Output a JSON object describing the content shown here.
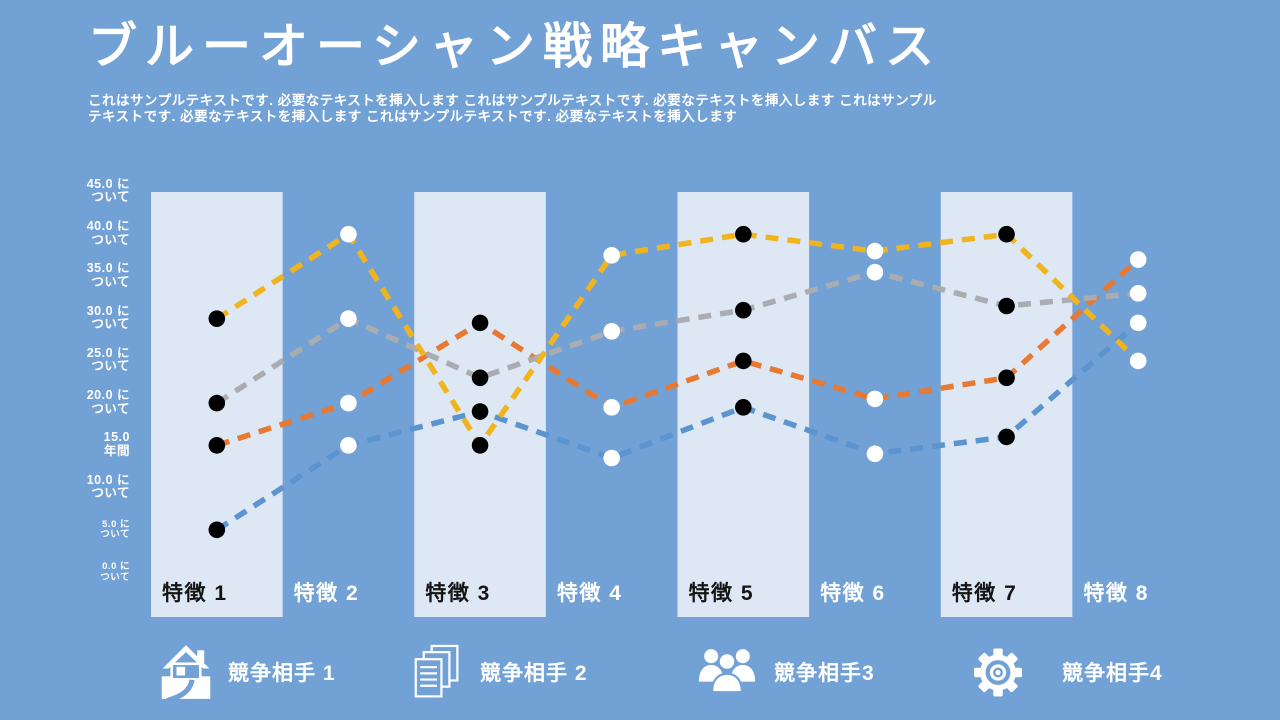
{
  "page": {
    "background": "#72A1D6"
  },
  "header": {
    "title": "ブルーオーシャン戦略キャンバス",
    "subtitle": "これはサンプルテキストです. 必要なテキストを挿入します これはサンプルテキストです. 必要なテキストを挿入します これはサンプルテキストです. 必要なテキストを挿入します これはサンプルテキストです. 必要なテキストを挿入します"
  },
  "chart_data": {
    "type": "line",
    "title": "ブルーオーシャン戦略キャンバス",
    "xlabel": "",
    "ylabel": "",
    "grid": false,
    "legend_position": "bottom",
    "categories": [
      "特徴 1",
      "特徴 2",
      "特徴 3",
      "特徴 4",
      "特徴 5",
      "特徴 6",
      "特徴 7",
      "特徴 8"
    ],
    "series": [
      {
        "name": "競争相手 1",
        "color": "#5B94CE",
        "values": [
          5,
          15,
          19,
          13.5,
          19.5,
          14,
          16,
          29.5
        ]
      },
      {
        "name": "競争相手 2",
        "color": "#E77932",
        "values": [
          15,
          20,
          29.5,
          19.5,
          25,
          20.5,
          23,
          37
        ]
      },
      {
        "name": "競争相手3",
        "color": "#A9ACB0",
        "values": [
          20,
          30,
          23,
          28.5,
          31,
          35.5,
          31.5,
          33
        ]
      },
      {
        "name": "競争相手4",
        "color": "#F0B41E",
        "values": [
          30,
          40,
          15,
          37.5,
          40,
          38,
          40,
          25
        ]
      }
    ],
    "ylim": [
      0,
      45
    ],
    "ytick_step": 5,
    "yticks": [
      {
        "lines": [
          "45.0 に",
          "ついて"
        ],
        "small": false
      },
      {
        "lines": [
          "40.0 に",
          "ついて"
        ],
        "small": false
      },
      {
        "lines": [
          "35.0 に",
          "ついて"
        ],
        "small": false
      },
      {
        "lines": [
          "30.0 に",
          "ついて"
        ],
        "small": false
      },
      {
        "lines": [
          "25.0 に",
          "ついて"
        ],
        "small": false
      },
      {
        "lines": [
          "20.0 に",
          "ついて"
        ],
        "small": false
      },
      {
        "lines": [
          "15.0",
          "年間"
        ],
        "small": false
      },
      {
        "lines": [
          "10.0 に",
          "ついて"
        ],
        "small": false
      },
      {
        "lines": [
          "5.0 に",
          "ついて"
        ],
        "small": true
      },
      {
        "lines": [
          "0.0 に",
          "ついて"
        ],
        "small": true
      }
    ],
    "style": {
      "dashed": true,
      "band_color": "#DEE8F5",
      "marker_on_band": "#000000",
      "marker_off_band": "#FFFFFF"
    }
  },
  "legend": {
    "items": [
      {
        "icon": "house-icon",
        "label": "競争相手 1"
      },
      {
        "icon": "documents-icon",
        "label": "競争相手 2"
      },
      {
        "icon": "people-icon",
        "label": "競争相手3"
      },
      {
        "icon": "gear-icon",
        "label": "競争相手4"
      }
    ]
  }
}
